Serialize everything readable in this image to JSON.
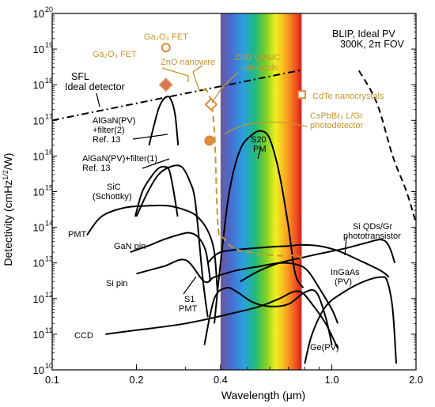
{
  "chart_data": {
    "type": "line",
    "xlabel": "Wavelength (μm)",
    "ylabel": "Detectivity (cmHz^1/2/W)",
    "x_scale": "log",
    "y_scale": "log",
    "xlim": [
      0.1,
      2.0
    ],
    "ylim": [
      10000000000.0,
      1e+20
    ],
    "x_ticks": [
      {
        "value": 0.1,
        "label": "0.1"
      },
      {
        "value": 0.2,
        "label": "0.2"
      },
      {
        "value": 0.4,
        "label": "0.4"
      },
      {
        "value": 1.0,
        "label": "1.0"
      },
      {
        "value": 2.0,
        "label": "2.0"
      }
    ],
    "y_ticks": [
      {
        "exp": 10,
        "label": "10"
      },
      {
        "exp": 11,
        "label": "10"
      },
      {
        "exp": 12,
        "label": "10"
      },
      {
        "exp": 13,
        "label": "10"
      },
      {
        "exp": 14,
        "label": "10"
      },
      {
        "exp": 15,
        "label": "10"
      },
      {
        "exp": 16,
        "label": "10"
      },
      {
        "exp": 17,
        "label": "10"
      },
      {
        "exp": 18,
        "label": "10"
      },
      {
        "exp": 19,
        "label": "10"
      },
      {
        "exp": 20,
        "label": "10"
      }
    ],
    "visible_band": {
      "from": 0.4,
      "to": 0.78
    },
    "series": [
      {
        "name": "SFL Ideal detector",
        "style": "dashdot",
        "color": "#000000",
        "points": [
          [
            0.1,
            1e+17
          ],
          [
            0.78,
            2.6e+18
          ]
        ]
      },
      {
        "name": "BLIP, Ideal PV 300K, 2π FOV",
        "style": "dashed",
        "color": "#000000",
        "points": [
          [
            1.25,
            2.5e+18
          ],
          [
            1.45,
            3e+17
          ],
          [
            1.65,
            1e+16
          ],
          [
            1.85,
            1000000000000000.0
          ],
          [
            2.0,
            130000000000000.0
          ]
        ]
      },
      {
        "name": "AlGaN(PV)+filter(2)",
        "style": "solid",
        "color": "#000000",
        "points": [
          [
            0.222,
            2e+16
          ],
          [
            0.232,
            8e+16
          ],
          [
            0.242,
            2.5e+17
          ],
          [
            0.255,
            4.5e+17
          ],
          [
            0.265,
            4e+17
          ],
          [
            0.275,
            1.5e+17
          ],
          [
            0.282,
            2e+16
          ]
        ]
      },
      {
        "name": "AlGaN(PV)+filter(1)",
        "style": "solid",
        "color": "#000000",
        "points": [
          [
            0.198,
            200000000000000.0
          ],
          [
            0.21,
            1000000000000000.0
          ],
          [
            0.225,
            2500000000000000.0
          ],
          [
            0.24,
            4500000000000000.0
          ],
          [
            0.252,
            5000000000000000.0
          ],
          [
            0.262,
            4000000000000000.0
          ],
          [
            0.272,
            1000000000000000.0
          ],
          [
            0.281,
            200000000000000.0
          ]
        ]
      },
      {
        "name": "SiC (Schottky)",
        "style": "solid",
        "color": "#000000",
        "points": [
          [
            0.2,
            200000000000000.0
          ],
          [
            0.22,
            1000000000000000.0
          ],
          [
            0.24,
            3000000000000000.0
          ],
          [
            0.265,
            5000000000000000.0
          ],
          [
            0.29,
            5000000000000000.0
          ],
          [
            0.31,
            2000000000000000.0
          ],
          [
            0.325,
            500000000000000.0
          ],
          [
            0.345,
            4000000000000.0
          ],
          [
            0.36,
            300000000000.0
          ]
        ]
      },
      {
        "name": "PMT",
        "style": "solid",
        "color": "#000000",
        "points": [
          [
            0.133,
            60000000000000.0
          ],
          [
            0.15,
            200000000000000.0
          ],
          [
            0.18,
            350000000000000.0
          ],
          [
            0.22,
            400000000000000.0
          ],
          [
            0.26,
            400000000000000.0
          ],
          [
            0.3,
            300000000000000.0
          ],
          [
            0.33,
            200000000000000.0
          ],
          [
            0.36,
            80000000000000.0
          ],
          [
            0.38,
            20000000000000.0
          ],
          [
            0.39,
            1500000000000.0
          ]
        ]
      },
      {
        "name": "S20 PM",
        "style": "solid",
        "color": "#000000",
        "points": [
          [
            0.38,
            200000000000.0
          ],
          [
            0.4,
            10000000000000.0
          ],
          [
            0.43,
            1000000000000000.0
          ],
          [
            0.47,
            1.5e+16
          ],
          [
            0.52,
            4e+16
          ],
          [
            0.56,
            5e+16
          ],
          [
            0.6,
            3e+16
          ],
          [
            0.65,
            3000000000000000.0
          ],
          [
            0.7,
            100000000000000.0
          ],
          [
            0.74,
            5000000000000.0
          ],
          [
            0.79,
            2000000000000.0
          ]
        ]
      },
      {
        "name": "GaN pin",
        "style": "solid",
        "color": "#000000",
        "points": [
          [
            0.19,
            20000000000000.0
          ],
          [
            0.22,
            30000000000000.0
          ],
          [
            0.25,
            45000000000000.0
          ],
          [
            0.28,
            60000000000000.0
          ],
          [
            0.31,
            70000000000000.0
          ],
          [
            0.335,
            50000000000000.0
          ],
          [
            0.355,
            20000000000000.0
          ],
          [
            0.368,
            3000000000000.0
          ]
        ]
      },
      {
        "name": "Si pin",
        "style": "solid",
        "color": "#000000",
        "points": [
          [
            0.2,
            5000000000000.0
          ],
          [
            0.25,
            8000000000000.0
          ],
          [
            0.3,
            12000000000000.0
          ],
          [
            0.35,
            3000000000000.0
          ],
          [
            0.38,
            4000000000000.0
          ],
          [
            0.45,
            6000000000000.0
          ],
          [
            0.55,
            8000000000000.0
          ],
          [
            0.65,
            10000000000000.0
          ],
          [
            0.75,
            9000000000000.0
          ],
          [
            0.82,
            6000000000000.0
          ],
          [
            0.9,
            2000000000000.0
          ],
          [
            1.0,
            500000000000.0
          ],
          [
            1.05,
            200000000000.0
          ]
        ]
      },
      {
        "name": "S1 PMT",
        "style": "solid",
        "color": "#000000",
        "points": [
          [
            0.35,
            50000000000.0
          ],
          [
            0.38,
            1000000000000.0
          ],
          [
            0.42,
            2000000000000.0
          ],
          [
            0.46,
            1500000000000.0
          ],
          [
            0.52,
            800000000000.0
          ],
          [
            0.6,
            600000000000.0
          ],
          [
            0.7,
            700000000000.0
          ],
          [
            0.8,
            1500000000000.0
          ],
          [
            0.88,
            1500000000000.0
          ],
          [
            0.95,
            300000000000.0
          ],
          [
            1.0,
            50000000000.0
          ]
        ]
      },
      {
        "name": "CCD",
        "style": "solid",
        "color": "#000000",
        "points": [
          [
            0.155,
            100000000000.0
          ],
          [
            0.2,
            130000000000.0
          ],
          [
            0.3,
            200000000000.0
          ],
          [
            0.45,
            400000000000.0
          ],
          [
            0.55,
            600000000000.0
          ],
          [
            0.65,
            1000000000000.0
          ],
          [
            0.72,
            1500000000000.0
          ],
          [
            0.78,
            1500000000000.0
          ],
          [
            0.85,
            700000000000.0
          ],
          [
            0.95,
            200000000000.0
          ],
          [
            1.05,
            40000000000.0
          ]
        ]
      },
      {
        "name": "Si QDs/Gr phototransistor",
        "style": "solid",
        "color": "#000000",
        "points": [
          [
            0.36,
            10000000000000.0
          ],
          [
            0.4,
            20000000000000.0
          ],
          [
            0.5,
            25000000000000.0
          ],
          [
            0.6,
            28000000000000.0
          ],
          [
            0.7,
            30000000000000.0
          ],
          [
            0.78,
            32000000000000.0
          ],
          [
            0.9,
            30000000000000.0
          ],
          [
            1.05,
            22000000000000.0
          ],
          [
            1.25,
            12000000000000.0
          ],
          [
            1.5,
            6000000000000.0
          ],
          [
            1.6,
            4000000000000.0
          ]
        ]
      },
      {
        "name": "InGaAs (PV)",
        "style": "solid",
        "color": "#000000",
        "points": [
          [
            0.47,
            3000000000000.0
          ],
          [
            0.55,
            6000000000000.0
          ],
          [
            0.65,
            10000000000000.0
          ],
          [
            0.78,
            14000000000000.0
          ],
          [
            0.9,
            18000000000000.0
          ],
          [
            1.1,
            25000000000000.0
          ],
          [
            1.3,
            35000000000000.0
          ],
          [
            1.5,
            45000000000000.0
          ],
          [
            1.6,
            30000000000000.0
          ],
          [
            1.68,
            10000000000000.0
          ]
        ]
      },
      {
        "name": "Ge(PV)",
        "style": "solid",
        "color": "#000000",
        "points": [
          [
            0.8,
            15000000000.0
          ],
          [
            0.85,
            100000000000.0
          ],
          [
            0.95,
            600000000000.0
          ],
          [
            1.1,
            1500000000000.0
          ],
          [
            1.3,
            3000000000000.0
          ],
          [
            1.5,
            4000000000000.0
          ],
          [
            1.58,
            3000000000000.0
          ],
          [
            1.65,
            500000000000.0
          ],
          [
            1.7,
            15000000000.0
          ]
        ]
      },
      {
        "name": "CsPbBr3 L/Gr photodetector",
        "style": "dashed",
        "color": "#C8962D",
        "points": [
          [
            0.345,
            7.5e+17
          ],
          [
            0.365,
            5e+17
          ],
          [
            0.38,
            5e+16
          ],
          [
            0.392,
            100000000000000.0
          ],
          [
            0.41,
            50000000000000.0
          ],
          [
            0.45,
            25000000000000.0
          ],
          [
            0.55,
            18000000000000.0
          ],
          [
            0.65,
            16000000000000.0
          ],
          [
            0.75,
            16000000000000.0
          ],
          [
            0.78,
            13000000000000.0
          ]
        ]
      }
    ],
    "markers": [
      {
        "name": "Ga2O3 FET (open)",
        "x": 0.255,
        "y": 1.1e+19,
        "shape": "circle-open",
        "color": "#E08A3C"
      },
      {
        "name": "Ga2O3 FET",
        "x": 0.255,
        "y": 1e+18,
        "shape": "diamond-filled",
        "color": "#E07050"
      },
      {
        "name": "ZnO nanowire",
        "x": 0.37,
        "y": 2.8e+17,
        "shape": "diamond-open",
        "color": "#E08A3C"
      },
      {
        "name": "ZnO QDs/C nanorods",
        "x": 0.365,
        "y": 2.7e+16,
        "shape": "circle-filled",
        "color": "#E08A3C"
      },
      {
        "name": "CdTe nanocrystals",
        "x": 0.78,
        "y": 5.3e+17,
        "shape": "square-open",
        "color": "#E08A3C"
      }
    ],
    "annotations": {
      "ga2o3_open": "Ga₂O₃ FET",
      "ga2o3_filled": "Ga₂O₃ FET",
      "zno_nanowire": "ZnO nanowire",
      "zno_qds_1": "ZnO QDs/C",
      "zno_qds_2": "nanorods",
      "cdte": "CdTe nanocrystals",
      "cspbbr_1": "CsPbBr₃ L/Gr",
      "cspbbr_2": "photodetector",
      "sfl_1": "SFL",
      "sfl_2": "Ideal detector",
      "blip_1": "BLIP, Ideal PV",
      "blip_2": "300K, 2π FOV",
      "algan2_1": "AlGaN(PV)",
      "algan2_2": "+filter(2)",
      "algan2_3": "Ref. 13",
      "algan1_1": "AlGaN(PV)+filter(1)",
      "algan1_2": "Ref. 13",
      "sic_1": "SiC",
      "sic_2": "(Schottky)",
      "s20_1": "S20",
      "s20_2": "PM",
      "pmt": "PMT",
      "gan": "GaN pin",
      "sipin": "Si pin",
      "s1_1": "S1",
      "s1_2": "PMT",
      "ccd": "CCD",
      "siqd_1": "Si QDs/Gr",
      "siqd_2": "phototransistor",
      "ingaas_1": "InGaAs",
      "ingaas_2": "(PV)",
      "ge": "Ge(PV)"
    }
  }
}
